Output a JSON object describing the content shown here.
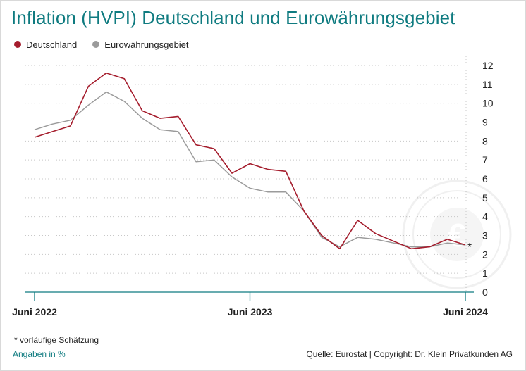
{
  "title": "Inflation (HVPI) Deutschland und Eurowährungsgebiet",
  "legend": [
    {
      "label": "Deutschland",
      "color": "#a51d2d"
    },
    {
      "label": "Eurowährungsgebiet",
      "color": "#9b9b9b"
    }
  ],
  "footnote": "* vorläufige Schätzung",
  "unit_note": "Angaben in %",
  "source": "Quelle: Eurostat | Copyright: Dr. Klein Privatkunden AG",
  "colors": {
    "title": "#0f7b80",
    "axis": "#0f7b80",
    "grid": "#c8c8c8",
    "germany": "#a51d2d",
    "euro": "#9b9b9b"
  },
  "chart_data": {
    "type": "line",
    "x_labels": [
      {
        "index": 0,
        "text": "Juni 2022"
      },
      {
        "index": 12,
        "text": "Juni 2023"
      },
      {
        "index": 24,
        "text": "Juni 2024"
      }
    ],
    "x": [
      "2022-06",
      "2022-07",
      "2022-08",
      "2022-09",
      "2022-10",
      "2022-11",
      "2022-12",
      "2023-01",
      "2023-02",
      "2023-03",
      "2023-04",
      "2023-05",
      "2023-06",
      "2023-07",
      "2023-08",
      "2023-09",
      "2023-10",
      "2023-11",
      "2023-12",
      "2024-01",
      "2024-02",
      "2024-03",
      "2024-04",
      "2024-05",
      "2024-06"
    ],
    "series": [
      {
        "name": "Deutschland",
        "color": "#a51d2d",
        "values": [
          8.2,
          8.5,
          8.8,
          10.9,
          11.6,
          11.3,
          9.6,
          9.2,
          9.3,
          7.8,
          7.6,
          6.3,
          6.8,
          6.5,
          6.4,
          4.3,
          3.0,
          2.3,
          3.8,
          3.1,
          2.7,
          2.3,
          2.4,
          2.8,
          2.5
        ]
      },
      {
        "name": "Eurowährungsgebiet",
        "color": "#9b9b9b",
        "values": [
          8.6,
          8.9,
          9.1,
          9.9,
          10.6,
          10.1,
          9.2,
          8.6,
          8.5,
          6.9,
          7.0,
          6.1,
          5.5,
          5.3,
          5.3,
          4.3,
          2.9,
          2.4,
          2.9,
          2.8,
          2.6,
          2.4,
          2.4,
          2.6,
          2.5
        ]
      }
    ],
    "ylim": [
      0,
      12
    ],
    "y_ticks": [
      "0",
      "1",
      "2",
      "3",
      "4",
      "5",
      "6",
      "7",
      "8",
      "9",
      "10",
      "11",
      "12"
    ],
    "grid": "dotted horizontal",
    "y_axis_side": "right",
    "legend_position": "top-left",
    "annotation": "*"
  }
}
